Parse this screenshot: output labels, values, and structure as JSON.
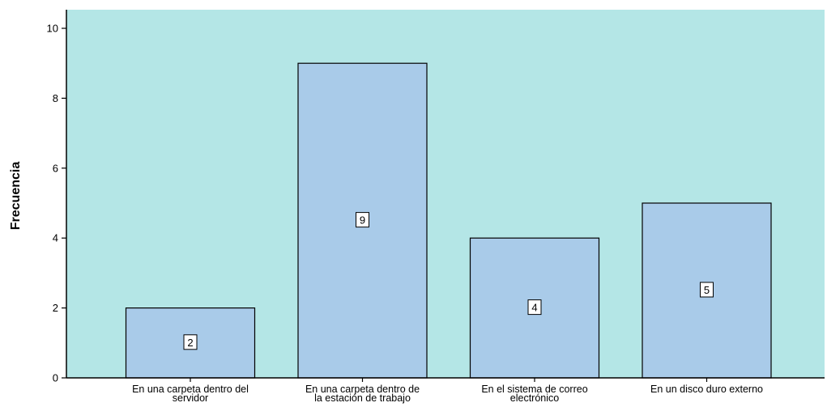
{
  "chart_data": {
    "type": "bar",
    "title": "",
    "xlabel": "",
    "ylabel": "Frecuencia",
    "ylim": [
      0,
      10
    ],
    "yticks": [
      0,
      2,
      4,
      6,
      8,
      10
    ],
    "grid": false,
    "categories": [
      [
        "En una carpeta dentro del",
        "servidor"
      ],
      [
        "En una carpeta dentro de",
        "la estación de trabajo"
      ],
      [
        "En el sistema de correo",
        "electrónico"
      ],
      [
        "En un disco duro externo"
      ]
    ],
    "values": [
      2,
      9,
      4,
      5
    ],
    "data_labels": [
      "2",
      "9",
      "4",
      "5"
    ],
    "colors": {
      "plot_background": "#b4e6e6",
      "bar_fill": "#a9cbe9",
      "bar_stroke": "#000000",
      "label_box": "#ffffff"
    }
  }
}
